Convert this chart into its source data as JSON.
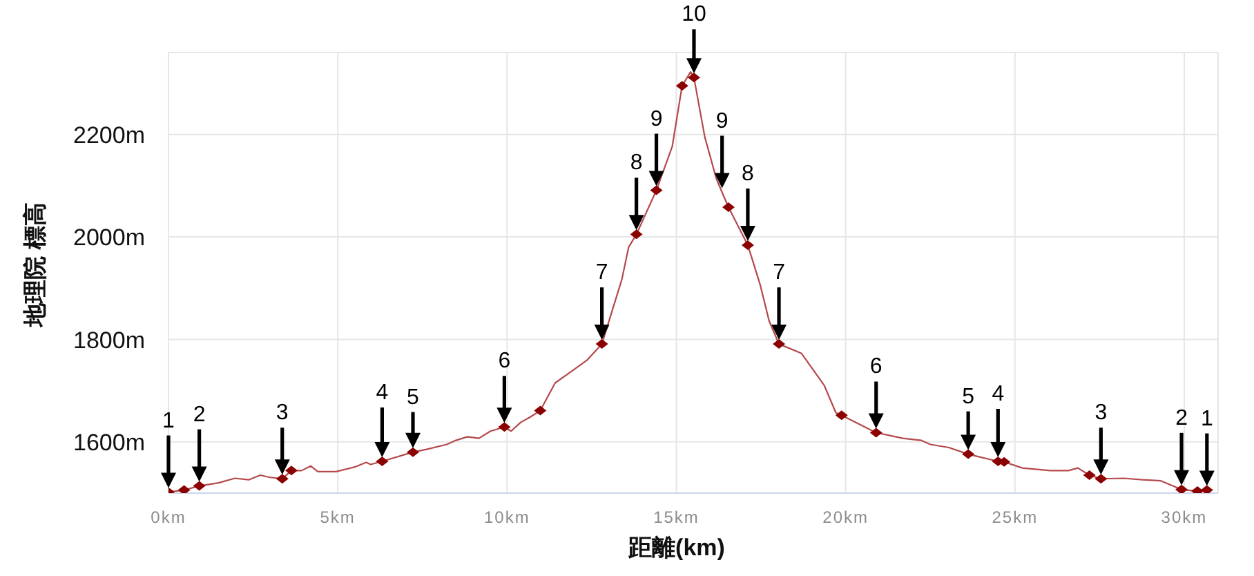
{
  "chart_data": {
    "type": "line",
    "xlabel": "距離(km)",
    "ylabel": "地理院 標高",
    "xlim": [
      0,
      31
    ],
    "ylim": [
      1500,
      2360
    ],
    "xticks": [
      {
        "value": 0,
        "label": "0km"
      },
      {
        "value": 5,
        "label": "5km"
      },
      {
        "value": 10,
        "label": "10km"
      },
      {
        "value": 15,
        "label": "15km"
      },
      {
        "value": 20,
        "label": "20km"
      },
      {
        "value": 25,
        "label": "25km"
      },
      {
        "value": 30,
        "label": "30km"
      }
    ],
    "yticks": [
      {
        "value": 1600,
        "label": "1600m"
      },
      {
        "value": 1800,
        "label": "1800m"
      },
      {
        "value": 2000,
        "label": "2000m"
      },
      {
        "value": 2200,
        "label": "2200m"
      }
    ],
    "grid": true,
    "series": [
      {
        "type": "line",
        "color": "#b5484b",
        "marker": "none",
        "x": [
          0,
          0.46,
          0.91,
          1.48,
          1.96,
          2.37,
          2.71,
          2.98,
          3.36,
          3.63,
          3.93,
          4.2,
          4.41,
          4.95,
          5.5,
          5.84,
          5.97,
          6.31,
          7.22,
          7.6,
          8.22,
          8.49,
          8.83,
          9.17,
          9.51,
          9.92,
          10.12,
          10.4,
          10.67,
          10.98,
          11.42,
          11.89,
          12.37,
          12.8,
          13.39,
          13.59,
          13.82,
          14.41,
          14.88,
          15.17,
          15.42,
          15.52,
          15.84,
          16.18,
          16.35,
          16.54,
          17.11,
          17.47,
          17.74,
          18.03,
          18.69,
          19.37,
          19.71,
          19.88,
          20.9,
          21.69,
          22.23,
          22.5,
          23.05,
          23.62,
          24.5,
          24.68,
          25.22,
          26.04,
          26.58,
          26.86,
          27.2,
          27.54,
          28.22,
          28.76,
          29.31,
          29.92,
          30.39,
          30.67
        ],
        "values": [
          1502,
          1506,
          1514,
          1520,
          1529,
          1526,
          1535,
          1531,
          1528,
          1544,
          1544,
          1553,
          1542,
          1542,
          1551,
          1560,
          1556,
          1562,
          1580,
          1585,
          1595,
          1603,
          1610,
          1607,
          1621,
          1629,
          1621,
          1638,
          1648,
          1661,
          1715,
          1737,
          1760,
          1791,
          1917,
          1980,
          2005,
          2091,
          2177,
          2295,
          2322,
          2311,
          2195,
          2114,
          2087,
          2058,
          1984,
          1908,
          1836,
          1791,
          1773,
          1710,
          1657,
          1652,
          1618,
          1607,
          1603,
          1595,
          1589,
          1576,
          1562,
          1561,
          1549,
          1544,
          1544,
          1549,
          1535,
          1528,
          1529,
          1526,
          1524,
          1507,
          1504,
          1506
        ]
      },
      {
        "type": "scatter",
        "color": "#8b0000",
        "marker": "diamond",
        "x": [
          0,
          0.46,
          0.91,
          3.36,
          3.63,
          6.31,
          7.22,
          9.92,
          10.98,
          12.8,
          13.82,
          14.41,
          15.17,
          15.52,
          16.54,
          17.11,
          18.03,
          19.88,
          20.9,
          23.62,
          24.5,
          24.68,
          27.2,
          27.54,
          29.92,
          30.39,
          30.67
        ],
        "values": [
          1502,
          1506,
          1514,
          1528,
          1544,
          1562,
          1580,
          1629,
          1661,
          1791,
          2005,
          2091,
          2295,
          2311,
          2058,
          1984,
          1791,
          1652,
          1618,
          1576,
          1562,
          1561,
          1535,
          1528,
          1507,
          1504,
          1506
        ]
      }
    ],
    "annotations": [
      {
        "text": "1",
        "x": 0,
        "y": 1502
      },
      {
        "text": "2",
        "x": 0.91,
        "y": 1514
      },
      {
        "text": "3",
        "x": 3.36,
        "y": 1528
      },
      {
        "text": "4",
        "x": 6.31,
        "y": 1562
      },
      {
        "text": "5",
        "x": 7.22,
        "y": 1580
      },
      {
        "text": "6",
        "x": 9.92,
        "y": 1629
      },
      {
        "text": "7",
        "x": 12.8,
        "y": 1791
      },
      {
        "text": "8",
        "x": 13.82,
        "y": 2005
      },
      {
        "text": "9",
        "x": 14.41,
        "y": 2091
      },
      {
        "text": "10",
        "x": 15.52,
        "y": 2311
      },
      {
        "text": "9",
        "x": 16.35,
        "y": 2087
      },
      {
        "text": "8",
        "x": 17.11,
        "y": 1984
      },
      {
        "text": "7",
        "x": 18.03,
        "y": 1791
      },
      {
        "text": "6",
        "x": 20.9,
        "y": 1618
      },
      {
        "text": "5",
        "x": 23.62,
        "y": 1576
      },
      {
        "text": "4",
        "x": 24.5,
        "y": 1562
      },
      {
        "text": "3",
        "x": 27.54,
        "y": 1528
      },
      {
        "text": "2",
        "x": 29.92,
        "y": 1507
      },
      {
        "text": "1",
        "x": 30.67,
        "y": 1506
      }
    ]
  }
}
